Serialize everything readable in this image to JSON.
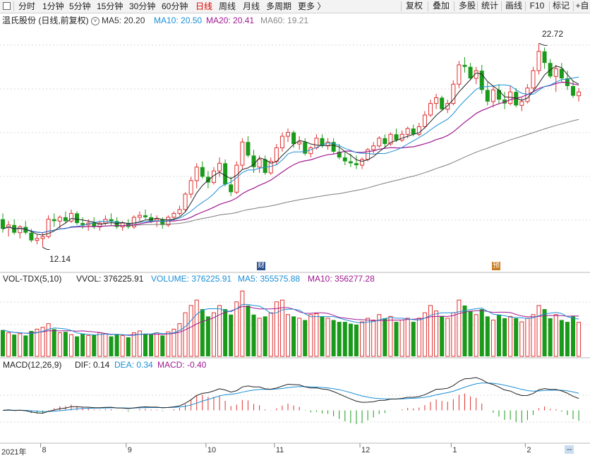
{
  "toolbar": {
    "periods": [
      "分时",
      "1分钟",
      "5分钟",
      "15分钟",
      "30分钟",
      "60分钟",
      "日线",
      "周线",
      "月线",
      "多周期",
      "更多 〉"
    ],
    "active_period": "日线",
    "right_buttons": [
      "复权",
      "叠加",
      "多股",
      "统计",
      "画线",
      "F10",
      "标记",
      "+自"
    ]
  },
  "header": {
    "stock_label": "温氏股份 (日线,前复权)",
    "dropdown_glyph": "˅",
    "ma5": "MA5: 20.20",
    "ma10": "MA10: 20.50",
    "ma20": "MA20: 20.41",
    "ma60": "MA60: 19.21"
  },
  "annotations": {
    "high_label": "22.72",
    "low_label": "12.14",
    "event1": "财",
    "event2": "预"
  },
  "volume_header": {
    "name": "VOL-TDX(5,10)",
    "vvol": "VVOL: 376225.91",
    "volume": "VOLUME: 376225.91",
    "ma5": "MA5: 355575.88",
    "ma10": "MA10: 356277.28"
  },
  "macd_header": {
    "name": "MACD(12,26,9)",
    "dif": "DIF: 0.14",
    "dea": "DEA: 0.34",
    "macd": "MACD: -0.40"
  },
  "x_axis": {
    "labels": [
      {
        "text": "2021年",
        "index": 0
      },
      {
        "text": "8",
        "index": 7
      },
      {
        "text": "9",
        "index": 22
      },
      {
        "text": "10",
        "index": 36
      },
      {
        "text": "11",
        "index": 48
      },
      {
        "text": "12",
        "index": 63
      },
      {
        "text": "1",
        "index": 79
      },
      {
        "text": "2",
        "index": 92
      }
    ],
    "end_label": "--"
  },
  "colors": {
    "up": "#e03030",
    "down": "#1a9a1a",
    "ma5": "#222222",
    "ma10": "#1a8fd6",
    "ma20": "#a01890",
    "ma60": "#7d7d7d",
    "grid": "#d9d9d9"
  },
  "chart_data": {
    "type": "candlestick",
    "title": "温氏股份 (日线,前复权)",
    "period": "daily",
    "price_range": [
      11.5,
      23.5
    ],
    "high_marker": {
      "index": 94,
      "value": 22.72
    },
    "low_marker": {
      "index": 7,
      "value": 12.14
    },
    "ohlc": [
      {
        "o": 13.6,
        "h": 13.9,
        "l": 12.9,
        "c": 13.1
      },
      {
        "o": 13.2,
        "h": 13.5,
        "l": 12.7,
        "c": 13.3
      },
      {
        "o": 13.3,
        "h": 13.6,
        "l": 12.8,
        "c": 12.9
      },
      {
        "o": 12.9,
        "h": 13.3,
        "l": 12.6,
        "c": 13.2
      },
      {
        "o": 13.2,
        "h": 13.5,
        "l": 12.8,
        "c": 12.9
      },
      {
        "o": 12.9,
        "h": 13.1,
        "l": 12.4,
        "c": 12.5
      },
      {
        "o": 12.5,
        "h": 12.8,
        "l": 12.3,
        "c": 12.6
      },
      {
        "o": 12.6,
        "h": 12.9,
        "l": 12.14,
        "c": 12.7
      },
      {
        "o": 12.7,
        "h": 13.8,
        "l": 12.6,
        "c": 13.6
      },
      {
        "o": 13.6,
        "h": 13.9,
        "l": 13.2,
        "c": 13.5
      },
      {
        "o": 13.5,
        "h": 13.8,
        "l": 13.1,
        "c": 13.7
      },
      {
        "o": 13.7,
        "h": 14.0,
        "l": 13.4,
        "c": 13.5
      },
      {
        "o": 13.5,
        "h": 14.1,
        "l": 13.4,
        "c": 13.9
      },
      {
        "o": 13.9,
        "h": 14.0,
        "l": 13.3,
        "c": 13.4
      },
      {
        "o": 13.4,
        "h": 13.7,
        "l": 13.1,
        "c": 13.3
      },
      {
        "o": 13.3,
        "h": 13.6,
        "l": 13.0,
        "c": 13.4
      },
      {
        "o": 13.4,
        "h": 13.7,
        "l": 13.1,
        "c": 13.2
      },
      {
        "o": 13.2,
        "h": 13.5,
        "l": 13.0,
        "c": 13.4
      },
      {
        "o": 13.4,
        "h": 13.8,
        "l": 13.3,
        "c": 13.6
      },
      {
        "o": 13.6,
        "h": 13.9,
        "l": 13.3,
        "c": 13.5
      },
      {
        "o": 13.5,
        "h": 13.7,
        "l": 13.1,
        "c": 13.2
      },
      {
        "o": 13.2,
        "h": 13.5,
        "l": 13.0,
        "c": 13.4
      },
      {
        "o": 13.4,
        "h": 13.6,
        "l": 13.1,
        "c": 13.2
      },
      {
        "o": 13.2,
        "h": 13.8,
        "l": 13.1,
        "c": 13.7
      },
      {
        "o": 13.7,
        "h": 14.0,
        "l": 13.5,
        "c": 13.8
      },
      {
        "o": 13.8,
        "h": 14.1,
        "l": 13.6,
        "c": 13.7
      },
      {
        "o": 13.7,
        "h": 13.9,
        "l": 13.4,
        "c": 13.5
      },
      {
        "o": 13.5,
        "h": 13.8,
        "l": 13.2,
        "c": 13.6
      },
      {
        "o": 13.6,
        "h": 13.7,
        "l": 13.1,
        "c": 13.3
      },
      {
        "o": 13.3,
        "h": 13.8,
        "l": 13.2,
        "c": 13.7
      },
      {
        "o": 13.7,
        "h": 14.0,
        "l": 13.5,
        "c": 13.9
      },
      {
        "o": 13.9,
        "h": 14.3,
        "l": 13.8,
        "c": 14.1
      },
      {
        "o": 14.1,
        "h": 15.0,
        "l": 14.0,
        "c": 14.9
      },
      {
        "o": 14.9,
        "h": 15.8,
        "l": 14.7,
        "c": 15.6
      },
      {
        "o": 15.6,
        "h": 16.5,
        "l": 15.2,
        "c": 16.3
      },
      {
        "o": 16.3,
        "h": 16.6,
        "l": 15.7,
        "c": 15.8
      },
      {
        "o": 15.8,
        "h": 16.1,
        "l": 15.2,
        "c": 15.5
      },
      {
        "o": 15.5,
        "h": 16.3,
        "l": 15.4,
        "c": 16.1
      },
      {
        "o": 16.1,
        "h": 16.8,
        "l": 15.8,
        "c": 16.5
      },
      {
        "o": 16.5,
        "h": 16.7,
        "l": 15.3,
        "c": 15.4
      },
      {
        "o": 15.4,
        "h": 15.8,
        "l": 14.8,
        "c": 15.0
      },
      {
        "o": 15.0,
        "h": 16.6,
        "l": 14.9,
        "c": 16.4
      },
      {
        "o": 16.4,
        "h": 17.8,
        "l": 16.2,
        "c": 17.6
      },
      {
        "o": 17.6,
        "h": 17.9,
        "l": 16.8,
        "c": 16.9
      },
      {
        "o": 16.9,
        "h": 17.2,
        "l": 16.0,
        "c": 16.3
      },
      {
        "o": 16.3,
        "h": 16.9,
        "l": 16.0,
        "c": 16.7
      },
      {
        "o": 16.7,
        "h": 16.9,
        "l": 15.9,
        "c": 16.0
      },
      {
        "o": 16.0,
        "h": 16.8,
        "l": 15.9,
        "c": 16.6
      },
      {
        "o": 16.6,
        "h": 17.5,
        "l": 16.4,
        "c": 17.3
      },
      {
        "o": 17.3,
        "h": 18.1,
        "l": 17.1,
        "c": 17.9
      },
      {
        "o": 17.9,
        "h": 18.3,
        "l": 17.6,
        "c": 18.1
      },
      {
        "o": 18.1,
        "h": 18.2,
        "l": 17.3,
        "c": 17.5
      },
      {
        "o": 17.5,
        "h": 17.9,
        "l": 17.2,
        "c": 17.6
      },
      {
        "o": 17.6,
        "h": 17.8,
        "l": 16.9,
        "c": 17.0
      },
      {
        "o": 17.0,
        "h": 17.4,
        "l": 16.8,
        "c": 17.3
      },
      {
        "o": 17.3,
        "h": 18.0,
        "l": 17.2,
        "c": 17.8
      },
      {
        "o": 17.8,
        "h": 18.0,
        "l": 17.3,
        "c": 17.4
      },
      {
        "o": 17.4,
        "h": 17.8,
        "l": 17.2,
        "c": 17.6
      },
      {
        "o": 17.6,
        "h": 17.8,
        "l": 17.0,
        "c": 17.1
      },
      {
        "o": 17.1,
        "h": 17.5,
        "l": 16.7,
        "c": 16.8
      },
      {
        "o": 16.8,
        "h": 17.1,
        "l": 16.4,
        "c": 16.6
      },
      {
        "o": 16.6,
        "h": 17.0,
        "l": 16.3,
        "c": 16.5
      },
      {
        "o": 16.5,
        "h": 16.9,
        "l": 16.2,
        "c": 16.4
      },
      {
        "o": 16.4,
        "h": 16.8,
        "l": 16.2,
        "c": 16.7
      },
      {
        "o": 16.7,
        "h": 17.3,
        "l": 16.6,
        "c": 17.2
      },
      {
        "o": 17.2,
        "h": 17.6,
        "l": 17.0,
        "c": 17.4
      },
      {
        "o": 17.4,
        "h": 17.9,
        "l": 17.3,
        "c": 17.8
      },
      {
        "o": 17.8,
        "h": 18.0,
        "l": 17.3,
        "c": 17.5
      },
      {
        "o": 17.5,
        "h": 18.1,
        "l": 17.4,
        "c": 18.0
      },
      {
        "o": 18.0,
        "h": 18.3,
        "l": 17.6,
        "c": 17.7
      },
      {
        "o": 17.7,
        "h": 18.2,
        "l": 17.6,
        "c": 18.0
      },
      {
        "o": 18.0,
        "h": 18.4,
        "l": 17.8,
        "c": 18.3
      },
      {
        "o": 18.3,
        "h": 18.5,
        "l": 17.9,
        "c": 18.0
      },
      {
        "o": 18.0,
        "h": 18.6,
        "l": 17.9,
        "c": 18.4
      },
      {
        "o": 18.4,
        "h": 19.2,
        "l": 18.3,
        "c": 19.0
      },
      {
        "o": 19.0,
        "h": 19.8,
        "l": 18.9,
        "c": 19.6
      },
      {
        "o": 19.6,
        "h": 20.1,
        "l": 19.3,
        "c": 19.9
      },
      {
        "o": 19.9,
        "h": 20.0,
        "l": 19.2,
        "c": 19.3
      },
      {
        "o": 19.3,
        "h": 19.8,
        "l": 19.1,
        "c": 19.6
      },
      {
        "o": 19.6,
        "h": 20.8,
        "l": 19.5,
        "c": 20.6
      },
      {
        "o": 20.6,
        "h": 21.8,
        "l": 20.4,
        "c": 21.6
      },
      {
        "o": 21.6,
        "h": 22.0,
        "l": 21.2,
        "c": 21.5
      },
      {
        "o": 21.5,
        "h": 21.7,
        "l": 20.8,
        "c": 20.9
      },
      {
        "o": 20.9,
        "h": 21.5,
        "l": 20.6,
        "c": 21.3
      },
      {
        "o": 21.3,
        "h": 21.6,
        "l": 20.1,
        "c": 20.3
      },
      {
        "o": 20.3,
        "h": 20.7,
        "l": 19.5,
        "c": 19.7
      },
      {
        "o": 19.7,
        "h": 20.5,
        "l": 19.4,
        "c": 20.3
      },
      {
        "o": 20.3,
        "h": 20.6,
        "l": 19.6,
        "c": 19.8
      },
      {
        "o": 19.8,
        "h": 20.2,
        "l": 19.3,
        "c": 19.6
      },
      {
        "o": 19.6,
        "h": 20.5,
        "l": 19.5,
        "c": 20.2
      },
      {
        "o": 20.2,
        "h": 20.4,
        "l": 19.4,
        "c": 19.5
      },
      {
        "o": 19.5,
        "h": 19.9,
        "l": 19.2,
        "c": 19.7
      },
      {
        "o": 19.7,
        "h": 20.6,
        "l": 19.6,
        "c": 20.4
      },
      {
        "o": 20.4,
        "h": 21.5,
        "l": 20.3,
        "c": 21.3
      },
      {
        "o": 21.3,
        "h": 22.72,
        "l": 21.1,
        "c": 22.3
      },
      {
        "o": 22.3,
        "h": 22.5,
        "l": 21.4,
        "c": 21.7
      },
      {
        "o": 21.7,
        "h": 21.9,
        "l": 20.9,
        "c": 21.0
      },
      {
        "o": 21.0,
        "h": 21.6,
        "l": 20.2,
        "c": 21.4
      },
      {
        "o": 21.4,
        "h": 21.7,
        "l": 20.7,
        "c": 20.9
      },
      {
        "o": 20.9,
        "h": 21.3,
        "l": 20.3,
        "c": 20.5
      },
      {
        "o": 20.5,
        "h": 20.8,
        "l": 19.9,
        "c": 20.0
      },
      {
        "o": 20.0,
        "h": 20.4,
        "l": 19.7,
        "c": 20.2
      }
    ],
    "volume": [
      290,
      260,
      240,
      250,
      230,
      280,
      300,
      320,
      360,
      300,
      260,
      270,
      240,
      220,
      250,
      230,
      240,
      260,
      250,
      220,
      240,
      230,
      210,
      260,
      280,
      250,
      240,
      260,
      230,
      270,
      300,
      360,
      480,
      560,
      620,
      520,
      440,
      480,
      560,
      520,
      460,
      600,
      720,
      560,
      460,
      420,
      440,
      480,
      600,
      620,
      460,
      440,
      420,
      400,
      460,
      470,
      440,
      420,
      400,
      380,
      380,
      360,
      350,
      380,
      420,
      400,
      460,
      420,
      440,
      380,
      400,
      420,
      380,
      420,
      480,
      560,
      500,
      440,
      420,
      480,
      620,
      560,
      500,
      460,
      520,
      440,
      400,
      460,
      420,
      440,
      420,
      380,
      420,
      460,
      560,
      520,
      420,
      460,
      400,
      380,
      440,
      376
    ],
    "vol_ma_series": [
      "MA5",
      "MA10"
    ],
    "macd_range": [
      -0.7,
      0.7
    ],
    "macd_series": [
      "DIF",
      "DEA",
      "MACD"
    ]
  }
}
